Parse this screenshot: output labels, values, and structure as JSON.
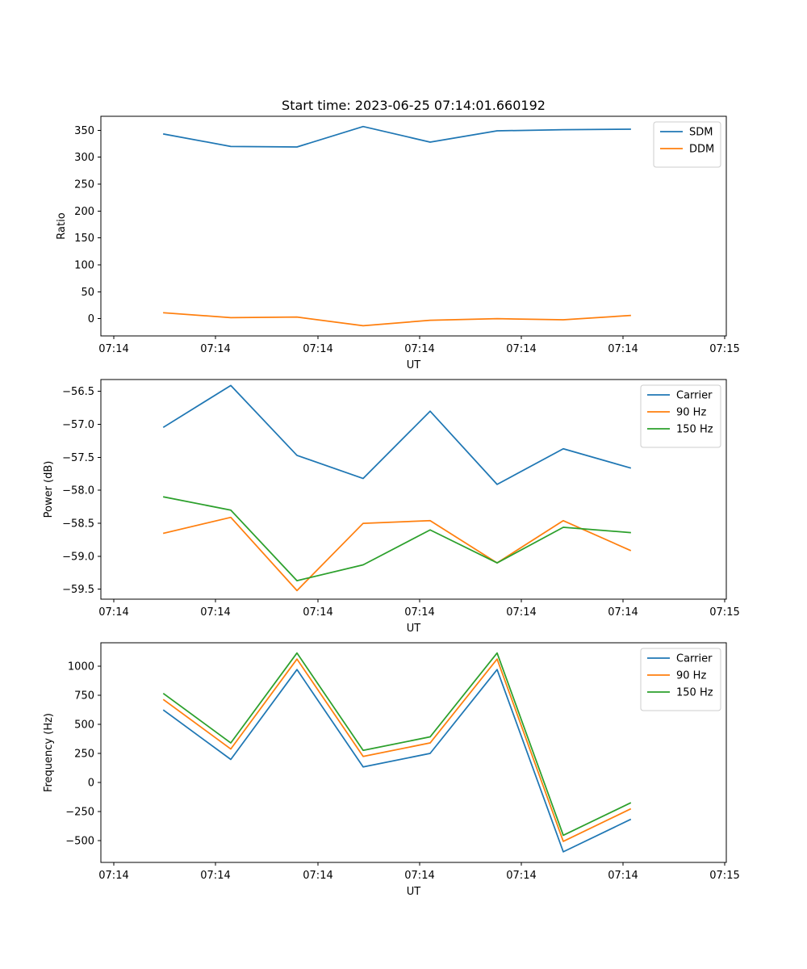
{
  "chart_data": [
    {
      "type": "line",
      "title": "Start time: 2023-06-25 07:14:01.660192",
      "xlabel": "UT",
      "ylabel": "Ratio",
      "xticklabels": [
        "07:14",
        "07:14",
        "07:14",
        "07:14",
        "07:14",
        "07:14",
        "07:14",
        "07:15"
      ],
      "yticks": [
        0,
        50,
        100,
        150,
        200,
        250,
        300,
        350
      ],
      "ylim": [
        -32,
        376
      ],
      "legend_position": "upper-right",
      "series": [
        {
          "name": "SDM",
          "color": "#1f77b4",
          "values": [
            343,
            320,
            319,
            357,
            328,
            349,
            351,
            352
          ]
        },
        {
          "name": "DDM",
          "color": "#ff7f0e",
          "values": [
            11,
            2,
            3,
            -13,
            -3,
            0,
            -2,
            6
          ]
        }
      ]
    },
    {
      "type": "line",
      "title": "",
      "xlabel": "UT",
      "ylabel": "Power (dB)",
      "xticklabels": [
        "07:14",
        "07:14",
        "07:14",
        "07:14",
        "07:14",
        "07:14",
        "07:14",
        "07:15"
      ],
      "yticks": [
        -59.5,
        -59.0,
        -58.5,
        -58.0,
        -57.5,
        -57.0,
        -56.5
      ],
      "yticklabels": [
        "−59.5",
        "−59.0",
        "−58.5",
        "−58.0",
        "−57.5",
        "−57.0",
        "−56.5"
      ],
      "ylim": [
        -59.65,
        -56.32
      ],
      "legend_position": "upper-right",
      "series": [
        {
          "name": "Carrier",
          "color": "#1f77b4",
          "values": [
            -57.04,
            -56.41,
            -57.47,
            -57.82,
            -56.8,
            -57.91,
            -57.37,
            -57.66
          ]
        },
        {
          "name": "90 Hz",
          "color": "#ff7f0e",
          "values": [
            -58.65,
            -58.41,
            -59.52,
            -58.5,
            -58.46,
            -59.1,
            -58.46,
            -58.91
          ]
        },
        {
          "name": "150 Hz",
          "color": "#2ca02c",
          "values": [
            -58.1,
            -58.3,
            -59.37,
            -59.13,
            -58.6,
            -59.1,
            -58.56,
            -58.64
          ]
        }
      ]
    },
    {
      "type": "line",
      "title": "",
      "xlabel": "UT",
      "ylabel": "Frequency (Hz)",
      "xticklabels": [
        "07:14",
        "07:14",
        "07:14",
        "07:14",
        "07:14",
        "07:14",
        "07:14",
        "07:15"
      ],
      "yticks": [
        -500,
        -250,
        0,
        250,
        500,
        750,
        1000
      ],
      "yticklabels": [
        "−500",
        "−250",
        "0",
        "250",
        "500",
        "750",
        "1000"
      ],
      "ylim": [
        -686,
        1200
      ],
      "legend_position": "upper-right",
      "series": [
        {
          "name": "Carrier",
          "color": "#1f77b4",
          "values": [
            620,
            198,
            970,
            134,
            250,
            970,
            -595,
            -318
          ]
        },
        {
          "name": "90 Hz",
          "color": "#ff7f0e",
          "values": [
            710,
            288,
            1060,
            224,
            340,
            1060,
            -505,
            -228
          ]
        },
        {
          "name": "150 Hz",
          "color": "#2ca02c",
          "values": [
            762,
            340,
            1112,
            276,
            392,
            1112,
            -453,
            -176
          ]
        }
      ]
    }
  ]
}
